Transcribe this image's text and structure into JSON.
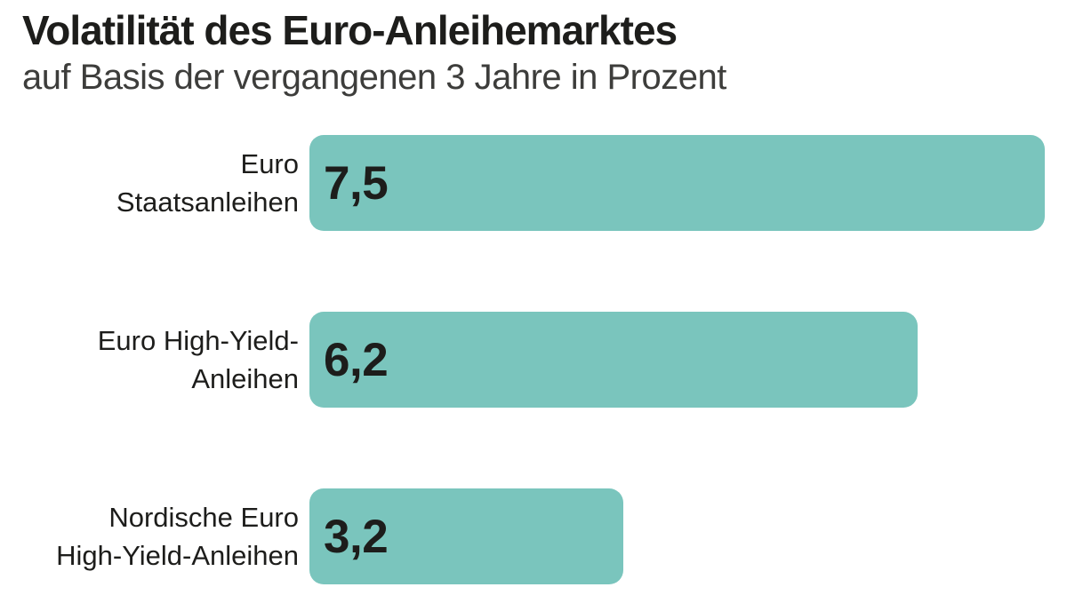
{
  "header": {
    "title": "Volatilität des Euro-Anleihemarktes",
    "subtitle": "auf Basis der vergangenen 3 Jahre in Prozent"
  },
  "chart_data": {
    "type": "bar",
    "orientation": "horizontal",
    "title": "Volatilität des Euro-Anleihemarktes",
    "subtitle": "auf Basis der vergangenen 3 Jahre in Prozent",
    "unit": "Prozent",
    "categories": [
      "Euro Staatsanleihen",
      "Euro High-Yield-Anleihen",
      "Nordische Euro High-Yield-Anleihen"
    ],
    "category_lines": [
      [
        "Euro",
        "Staatsanleihen"
      ],
      [
        "Euro High-Yield-",
        "Anleihen"
      ],
      [
        "Nordische Euro",
        "High-Yield-Anleihen"
      ]
    ],
    "values": [
      7.5,
      6.2,
      3.2
    ],
    "value_labels": [
      "7,5",
      "6,2",
      "3,2"
    ],
    "xlim": [
      0,
      7.5
    ],
    "grid": false,
    "legend": false,
    "axis_shown": false,
    "bar_color": "#7ac5bd",
    "text_color": "#1d1d1b",
    "subtitle_color": "#3d3d3b",
    "background_color": "#ffffff"
  }
}
